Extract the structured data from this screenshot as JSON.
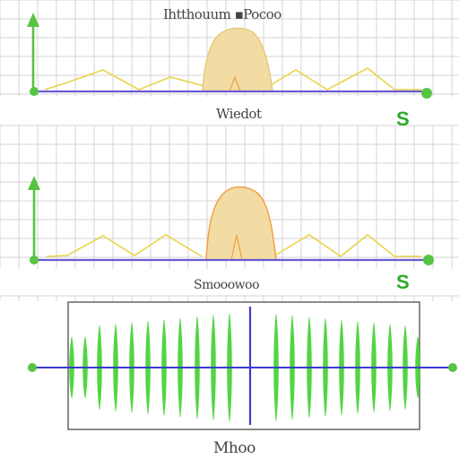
{
  "colors": {
    "background": "#ffffff",
    "grid": "#d4d4d4",
    "axis_green": "#57c443",
    "baseline_purple": "#6a5ad2",
    "peak_fill": "#f3dca3",
    "peak_stroke": "#e3c97a",
    "lobe_yellow": "#e9d448",
    "waveform_green": "#3fd22e",
    "center_line": "#3b3ccf",
    "frame": "#6e6e6e",
    "badge_green": "#2eaa2a"
  },
  "icons": [
    "up-arrow-icon",
    "endpoint-dot-icon"
  ],
  "panels": {
    "top": {
      "title": "Ihtthouum ▪Pocoo",
      "sublabel": "Wiedot",
      "badge": "S"
    },
    "middle": {
      "sublabel": "Smooowoo",
      "badge": "S"
    },
    "bottom": {
      "caption": "Mhoo"
    }
  }
}
